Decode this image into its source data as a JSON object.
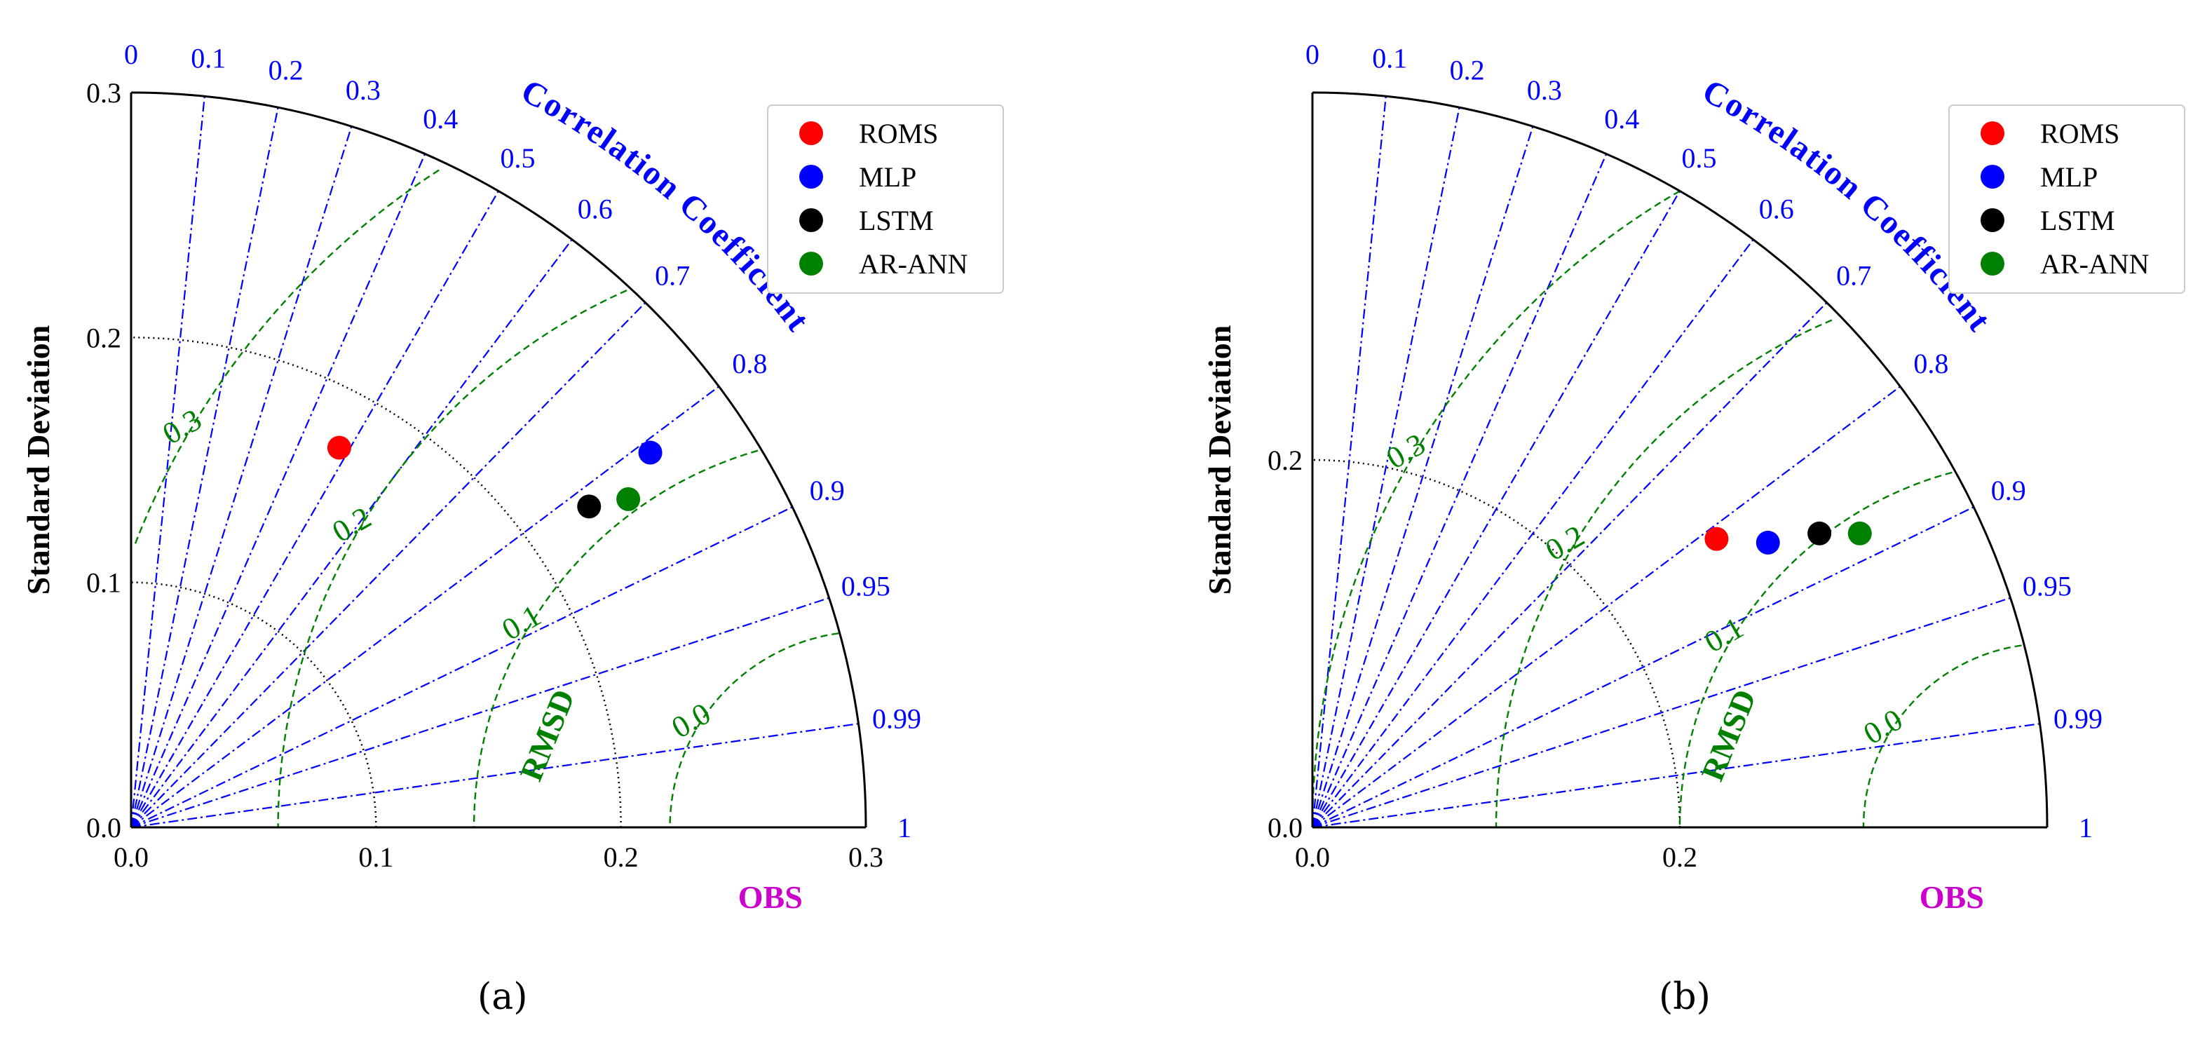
{
  "chart_data": [
    {
      "type": "taylor_diagram",
      "panel": "a",
      "caption": "(a)",
      "ylabel": "Standard Deviation",
      "xlabel": "OBS",
      "corr_label": "Correlation Coefficient",
      "rmsd_label": "RMSD",
      "std_max": 0.3,
      "std_ticks": [
        0.0,
        0.1,
        0.2,
        0.3
      ],
      "std_tick_labels": [
        "0.0",
        "0.1",
        "0.2",
        "0.3"
      ],
      "obs_std": 0.3,
      "corr_ticks": [
        0,
        0.1,
        0.2,
        0.3,
        0.4,
        0.5,
        0.6,
        0.7,
        0.8,
        0.9,
        0.95,
        0.99,
        1
      ],
      "corr_tick_labels": [
        "0",
        "0.1",
        "0.2",
        "0.3",
        "0.4",
        "0.5",
        "0.6",
        "0.7",
        "0.8",
        "0.9",
        "0.95",
        "0.99",
        "1"
      ],
      "rmsd_contours": [
        0.0,
        0.1,
        0.2,
        0.3
      ],
      "rmsd_contour_labels": [
        "0.0",
        "0.1",
        "0.2",
        "0.3"
      ],
      "legend": [
        "ROMS",
        "MLP",
        "LSTM",
        "AR-ANN"
      ],
      "points": [
        {
          "name": "ROMS",
          "x": 0.085,
          "y": 0.155,
          "color": "#ff0000"
        },
        {
          "name": "MLP",
          "x": 0.212,
          "y": 0.153,
          "color": "#0000ff"
        },
        {
          "name": "LSTM",
          "x": 0.187,
          "y": 0.131,
          "color": "#000000"
        },
        {
          "name": "AR-ANN",
          "x": 0.203,
          "y": 0.134,
          "color": "#008000"
        }
      ]
    },
    {
      "type": "taylor_diagram",
      "panel": "b",
      "caption": "(b)",
      "ylabel": "Standard Deviation",
      "xlabel": "OBS",
      "corr_label": "Correlation Coefficient",
      "rmsd_label": "RMSD",
      "std_max": 0.4,
      "std_ticks": [
        0.0,
        0.2
      ],
      "std_tick_labels": [
        "0.0",
        "0.2"
      ],
      "obs_std": 0.4,
      "corr_ticks": [
        0,
        0.1,
        0.2,
        0.3,
        0.4,
        0.5,
        0.6,
        0.7,
        0.8,
        0.9,
        0.95,
        0.99,
        1
      ],
      "corr_tick_labels": [
        "0",
        "0.1",
        "0.2",
        "0.3",
        "0.4",
        "0.5",
        "0.6",
        "0.7",
        "0.8",
        "0.9",
        "0.95",
        "0.99",
        "1"
      ],
      "rmsd_contours": [
        0.0,
        0.1,
        0.2,
        0.3
      ],
      "rmsd_contour_labels": [
        "0.0",
        "0.1",
        "0.2",
        "0.3"
      ],
      "legend": [
        "ROMS",
        "MLP",
        "LSTM",
        "AR-ANN"
      ],
      "points": [
        {
          "name": "ROMS",
          "x": 0.22,
          "y": 0.157,
          "color": "#ff0000"
        },
        {
          "name": "MLP",
          "x": 0.248,
          "y": 0.155,
          "color": "#0000ff"
        },
        {
          "name": "LSTM",
          "x": 0.276,
          "y": 0.16,
          "color": "#000000"
        },
        {
          "name": "AR-ANN",
          "x": 0.298,
          "y": 0.16,
          "color": "#008000"
        }
      ]
    }
  ],
  "colors": {
    "corr_lines": "#0000ff",
    "rmsd_contours": "#008000",
    "obs_label": "#cc00cc",
    "std_arcs": "#000000"
  }
}
